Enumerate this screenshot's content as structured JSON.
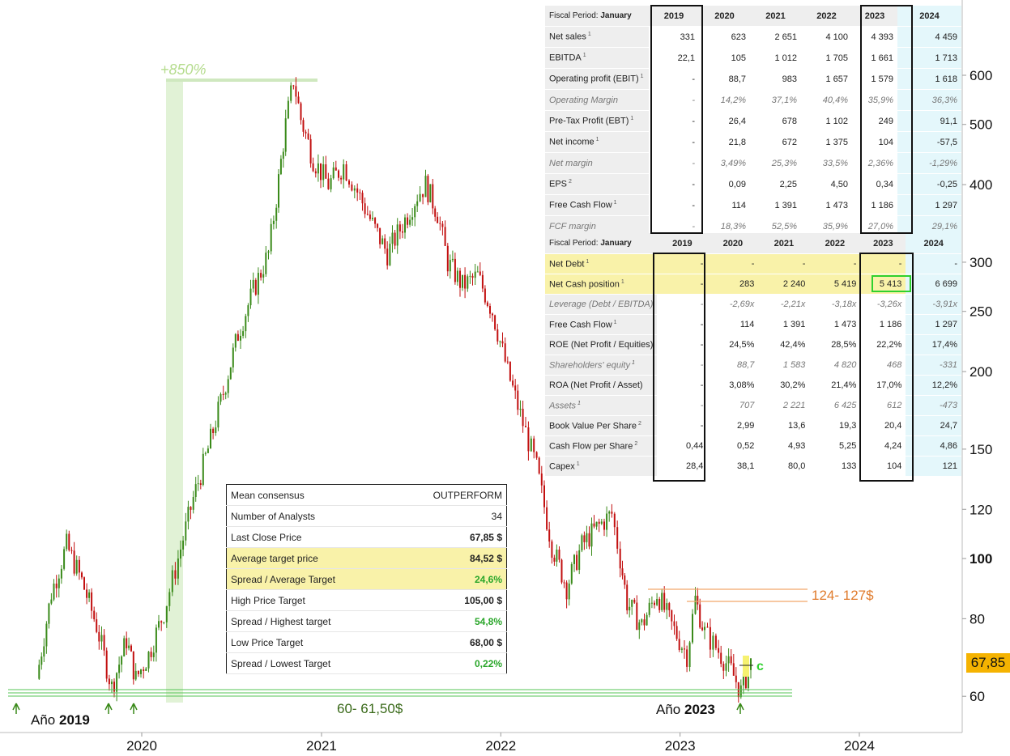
{
  "chart_data": {
    "type": "candlestick",
    "title": "",
    "y_scale": "log",
    "ylim": [
      57,
      640
    ],
    "x_ticks": [
      "2020",
      "2021",
      "2022",
      "2023",
      "2024"
    ],
    "y_ticks": [
      60,
      80,
      100,
      120,
      150,
      200,
      250,
      300,
      400,
      500,
      600
    ],
    "bold_y_tick": 100,
    "last_price_label": "67,85",
    "price_path": [
      {
        "date": "2019-06-01",
        "price": 64
      },
      {
        "date": "2019-07-01",
        "price": 88
      },
      {
        "date": "2019-08-01",
        "price": 105
      },
      {
        "date": "2019-09-01",
        "price": 92
      },
      {
        "date": "2019-10-01",
        "price": 78
      },
      {
        "date": "2019-11-01",
        "price": 62
      },
      {
        "date": "2019-12-01",
        "price": 74
      },
      {
        "date": "2019-12-20",
        "price": 64
      },
      {
        "date": "2020-01-15",
        "price": 70
      },
      {
        "date": "2020-02-15",
        "price": 82
      },
      {
        "date": "2020-03-15",
        "price": 100
      },
      {
        "date": "2020-04-15",
        "price": 125
      },
      {
        "date": "2020-05-15",
        "price": 150
      },
      {
        "date": "2020-06-15",
        "price": 185
      },
      {
        "date": "2020-07-15",
        "price": 230
      },
      {
        "date": "2020-08-15",
        "price": 270
      },
      {
        "date": "2020-09-15",
        "price": 310
      },
      {
        "date": "2020-10-01",
        "price": 380
      },
      {
        "date": "2020-10-20",
        "price": 500
      },
      {
        "date": "2020-11-05",
        "price": 590
      },
      {
        "date": "2020-11-20",
        "price": 510
      },
      {
        "date": "2020-12-15",
        "price": 440
      },
      {
        "date": "2021-01-15",
        "price": 400
      },
      {
        "date": "2021-02-15",
        "price": 430
      },
      {
        "date": "2021-03-15",
        "price": 390
      },
      {
        "date": "2021-04-15",
        "price": 345
      },
      {
        "date": "2021-05-15",
        "price": 310
      },
      {
        "date": "2021-06-15",
        "price": 345
      },
      {
        "date": "2021-07-15",
        "price": 385
      },
      {
        "date": "2021-08-01",
        "price": 400
      },
      {
        "date": "2021-08-25",
        "price": 360
      },
      {
        "date": "2021-09-15",
        "price": 300
      },
      {
        "date": "2021-10-15",
        "price": 275
      },
      {
        "date": "2021-11-15",
        "price": 285
      },
      {
        "date": "2021-12-15",
        "price": 250
      },
      {
        "date": "2022-01-15",
        "price": 200
      },
      {
        "date": "2022-02-15",
        "price": 165
      },
      {
        "date": "2022-03-15",
        "price": 140
      },
      {
        "date": "2022-04-15",
        "price": 105
      },
      {
        "date": "2022-05-15",
        "price": 90
      },
      {
        "date": "2022-06-15",
        "price": 105
      },
      {
        "date": "2022-07-15",
        "price": 112
      },
      {
        "date": "2022-08-15",
        "price": 118
      },
      {
        "date": "2022-09-01",
        "price": 100
      },
      {
        "date": "2022-09-15",
        "price": 85
      },
      {
        "date": "2022-10-15",
        "price": 78
      },
      {
        "date": "2022-11-15",
        "price": 88
      },
      {
        "date": "2022-12-15",
        "price": 78
      },
      {
        "date": "2023-01-15",
        "price": 70
      },
      {
        "date": "2023-02-01",
        "price": 86
      },
      {
        "date": "2023-02-20",
        "price": 76
      },
      {
        "date": "2023-03-15",
        "price": 72
      },
      {
        "date": "2023-04-15",
        "price": 66
      },
      {
        "date": "2023-05-05",
        "price": 61
      },
      {
        "date": "2023-05-25",
        "price": 67.85
      }
    ],
    "peak_gain_label": "+850%",
    "support_zone_label": "60- 61,50$",
    "support_zone": [
      60,
      61.5
    ],
    "resistance_zone_label": "124- 127$",
    "year_labels": [
      {
        "prefix": "Año ",
        "year": "2019"
      },
      {
        "prefix": "Año ",
        "year": "2023"
      }
    ],
    "marker_c_label": "c"
  },
  "table1": {
    "header_label": "Fiscal Period:",
    "header_value": "January",
    "years": [
      "2019",
      "2020",
      "2021",
      "2022",
      "2023",
      "2024"
    ],
    "rows": [
      {
        "label": "Net sales",
        "fn": "1",
        "italic": false,
        "values": [
          "331",
          "623",
          "2 651",
          "4 100",
          "4 393",
          "4 459"
        ]
      },
      {
        "label": "EBITDA",
        "fn": "1",
        "italic": false,
        "values": [
          "22,1",
          "105",
          "1 012",
          "1 705",
          "1 661",
          "1 713"
        ]
      },
      {
        "label": "Operating profit (EBIT)",
        "fn": "1",
        "italic": false,
        "values": [
          "-",
          "88,7",
          "983",
          "1 657",
          "1 579",
          "1 618"
        ]
      },
      {
        "label": "Operating Margin",
        "fn": "",
        "italic": true,
        "values": [
          "-",
          "14,2%",
          "37,1%",
          "40,4%",
          "35,9%",
          "36,3%"
        ]
      },
      {
        "label": "Pre-Tax Profit (EBT)",
        "fn": "1",
        "italic": false,
        "values": [
          "-",
          "26,4",
          "678",
          "1 102",
          "249",
          "91,1"
        ]
      },
      {
        "label": "Net income",
        "fn": "1",
        "italic": false,
        "values": [
          "-",
          "21,8",
          "672",
          "1 375",
          "104",
          "-57,5"
        ]
      },
      {
        "label": "Net margin",
        "fn": "",
        "italic": true,
        "values": [
          "-",
          "3,49%",
          "25,3%",
          "33,5%",
          "2,36%",
          "-1,29%"
        ]
      },
      {
        "label": "EPS",
        "fn": "2",
        "italic": false,
        "values": [
          "-",
          "0,09",
          "2,25",
          "4,50",
          "0,34",
          "-0,25"
        ]
      },
      {
        "label": "Free Cash Flow",
        "fn": "1",
        "italic": false,
        "values": [
          "-",
          "114",
          "1 391",
          "1 473",
          "1 186",
          "1 297"
        ]
      },
      {
        "label": "FCF margin",
        "fn": "",
        "italic": true,
        "values": [
          "-",
          "18,3%",
          "52,5%",
          "35,9%",
          "27,0%",
          "29,1%"
        ]
      }
    ]
  },
  "table2": {
    "header_label": "Fiscal Period:",
    "header_value": "January",
    "years": [
      "2019",
      "2020",
      "2021",
      "2022",
      "2023",
      "2024"
    ],
    "rows": [
      {
        "label": "Net Debt",
        "fn": "1",
        "italic": false,
        "hl": true,
        "values": [
          "-",
          "-",
          "-",
          "-",
          "-",
          "-"
        ]
      },
      {
        "label": "Net Cash position",
        "fn": "1",
        "italic": false,
        "hl": true,
        "values": [
          "-",
          "283",
          "2 240",
          "5 419",
          "5 413",
          "6 699"
        ]
      },
      {
        "label": "Leverage (Debt / EBITDA)",
        "fn": "",
        "italic": true,
        "hl": false,
        "values": [
          "-",
          "-2,69x",
          "-2,21x",
          "-3,18x",
          "-3,26x",
          "-3,91x"
        ]
      },
      {
        "label": "Free Cash Flow",
        "fn": "1",
        "italic": false,
        "hl": false,
        "values": [
          "-",
          "114",
          "1 391",
          "1 473",
          "1 186",
          "1 297"
        ]
      },
      {
        "label": "ROE (Net Profit / Equities)",
        "fn": "",
        "italic": false,
        "hl": false,
        "values": [
          "-",
          "24,5%",
          "42,4%",
          "28,5%",
          "22,2%",
          "17,4%"
        ]
      },
      {
        "label": "Shareholders' equity",
        "fn": "1",
        "italic": true,
        "hl": false,
        "values": [
          "-",
          "88,7",
          "1 583",
          "4 820",
          "468",
          "-331"
        ]
      },
      {
        "label": "ROA (Net Profit / Asset)",
        "fn": "",
        "italic": false,
        "hl": false,
        "values": [
          "-",
          "3,08%",
          "30,2%",
          "21,4%",
          "17,0%",
          "12,2%"
        ]
      },
      {
        "label": "Assets",
        "fn": "1",
        "italic": true,
        "hl": false,
        "values": [
          "-",
          "707",
          "2 221",
          "6 425",
          "612",
          "-473"
        ]
      },
      {
        "label": "Book Value Per Share",
        "fn": "2",
        "italic": false,
        "hl": false,
        "values": [
          "-",
          "2,99",
          "13,6",
          "19,3",
          "20,4",
          "24,7"
        ]
      },
      {
        "label": "Cash Flow per Share",
        "fn": "2",
        "italic": false,
        "hl": false,
        "values": [
          "0,44",
          "0,52",
          "4,93",
          "5,25",
          "4,24",
          "4,86"
        ]
      },
      {
        "label": "Capex",
        "fn": "1",
        "italic": false,
        "hl": false,
        "values": [
          "28,4",
          "38,1",
          "80,0",
          "133",
          "104",
          "121"
        ]
      }
    ]
  },
  "consensus": {
    "rows": [
      {
        "label": "Mean consensus",
        "value": "OUTPERFORM",
        "hl": false,
        "pct": false
      },
      {
        "label": "Number of Analysts",
        "value": "34",
        "hl": false,
        "pct": false
      },
      {
        "label": "Last Close Price",
        "value": "67,85 $",
        "hl": false,
        "pct": false
      },
      {
        "label": "Average target price",
        "value": "84,52 $",
        "hl": true,
        "pct": false
      },
      {
        "label": "Spread / Average Target",
        "value": "24,6%",
        "hl": true,
        "pct": true
      },
      {
        "label": "High Price Target",
        "value": "105,00 $",
        "hl": false,
        "pct": false
      },
      {
        "label": "Spread / Highest target",
        "value": "54,8%",
        "hl": false,
        "pct": true
      },
      {
        "label": "Low Price Target",
        "value": "68,00 $",
        "hl": false,
        "pct": false
      },
      {
        "label": "Spread / Lowest Target",
        "value": "0,22%",
        "hl": false,
        "pct": true
      }
    ]
  }
}
